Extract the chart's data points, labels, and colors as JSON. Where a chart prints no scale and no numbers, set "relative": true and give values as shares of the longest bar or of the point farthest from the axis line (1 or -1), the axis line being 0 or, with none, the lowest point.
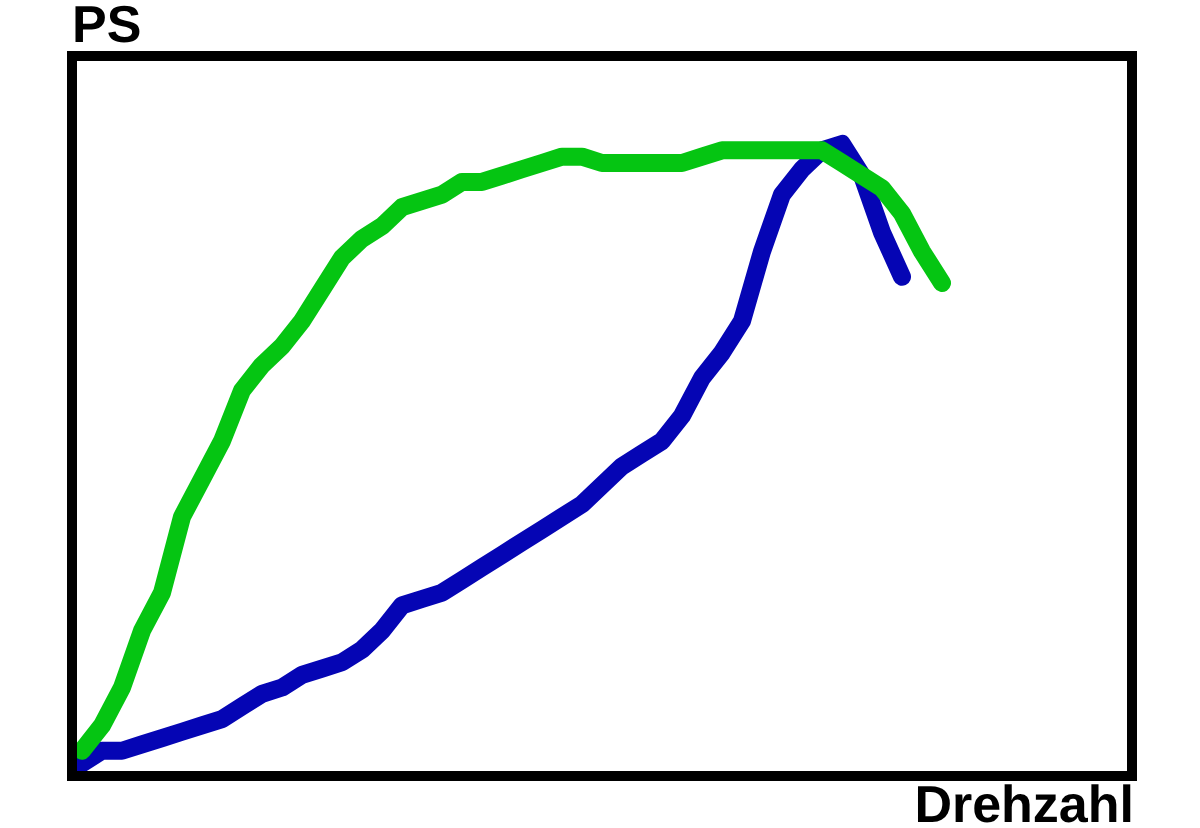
{
  "chart_data": {
    "type": "line",
    "relative": true,
    "xlabel": "Drehzahl",
    "ylabel": "PS",
    "categories": [
      null,
      null,
      null,
      null,
      null,
      null,
      null,
      null,
      null,
      null,
      null,
      null,
      null,
      null,
      null,
      null,
      null,
      null,
      null,
      null,
      null,
      null,
      null,
      null,
      null,
      null,
      null,
      null,
      null,
      null,
      null,
      null,
      null,
      null,
      null,
      null,
      null,
      null,
      null,
      null,
      null,
      null,
      null,
      null,
      null,
      null,
      null,
      null,
      null,
      null,
      null,
      null,
      null
    ],
    "series": [
      {
        "color": "#0505b4",
        "values": [
          0.02,
          0.04,
          0.04,
          0.05,
          0.06,
          0.07,
          0.08,
          0.09,
          0.11,
          0.13,
          0.14,
          0.16,
          0.17,
          0.18,
          0.2,
          0.23,
          0.27,
          0.28,
          0.29,
          0.31,
          0.33,
          0.35,
          0.37,
          0.39,
          0.41,
          0.43,
          0.46,
          0.49,
          0.51,
          0.53,
          0.57,
          0.63,
          0.67,
          0.72,
          0.83,
          0.92,
          0.96,
          0.99,
          1,
          0.95,
          0.86,
          0.79,
          null,
          null,
          null,
          null,
          null,
          null,
          null,
          null,
          null,
          null,
          null
        ]
      },
      {
        "color": "#05c512",
        "values": [
          0.04,
          0.08,
          0.14,
          0.23,
          0.29,
          0.41,
          0.47,
          0.53,
          0.61,
          0.65,
          0.68,
          0.72,
          0.77,
          0.82,
          0.85,
          0.87,
          0.9,
          0.91,
          0.92,
          0.94,
          0.94,
          0.95,
          0.96,
          0.97,
          0.98,
          0.98,
          0.97,
          0.97,
          0.97,
          0.97,
          0.97,
          0.98,
          0.99,
          0.99,
          0.99,
          0.99,
          0.99,
          0.99,
          0.97,
          0.95,
          0.93,
          0.89,
          0.83,
          0.78,
          null,
          null,
          null,
          null,
          null,
          null,
          null,
          null,
          null
        ]
      }
    ]
  }
}
